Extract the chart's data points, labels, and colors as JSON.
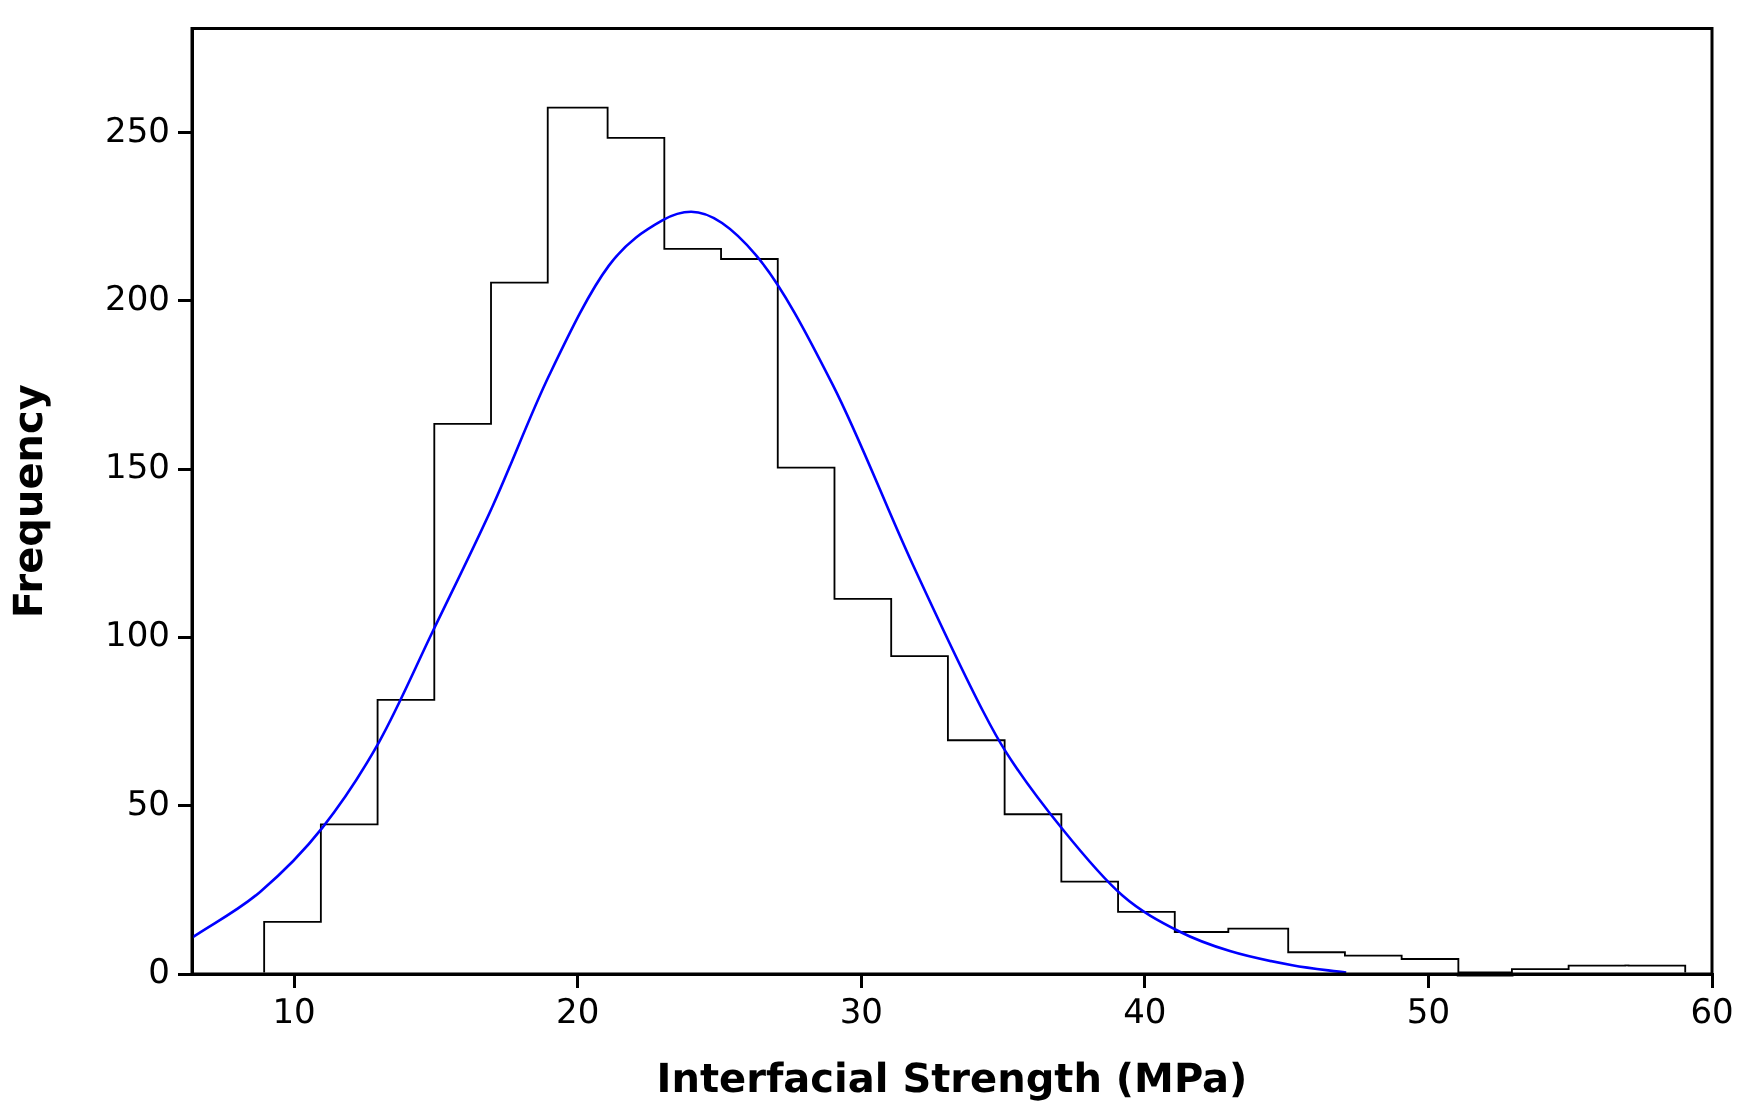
{
  "chart_data": {
    "type": "histogram",
    "xlabel": "Interfacial Strength (MPa)",
    "ylabel": "Frequency",
    "bins": [
      9,
      11,
      13,
      15,
      17,
      19,
      21,
      23,
      25,
      27,
      29,
      31,
      33,
      35,
      37,
      39,
      41,
      43,
      45,
      47,
      49,
      51,
      53,
      55,
      57,
      59
    ],
    "values": [
      15,
      44,
      81,
      163,
      205,
      257,
      248,
      215,
      212,
      150,
      111,
      94,
      69,
      47,
      27,
      18,
      12,
      13,
      6,
      5,
      4,
      0,
      1,
      2,
      2
    ],
    "color": "#ffffff",
    "series": [
      {
        "type": "line",
        "color": "#0000ff",
        "x": [
          6.4,
          8.8,
          11,
          13,
          14.9,
          17,
          19,
          21.1,
          23,
          24,
          26.3,
          29,
          31.8,
          34.3,
          35.1,
          37.1,
          39.2,
          41.2,
          43,
          45.2,
          47.1
        ],
        "values": [
          10.8,
          24.4,
          43.5,
          69,
          102,
          139,
          178,
          210.5,
          224,
          226.5,
          213.5,
          175,
          122,
          78,
          66,
          43,
          23.4,
          12.7,
          6.8,
          2.6,
          0.4
        ]
      }
    ],
    "xlim": [
      6.4,
      60
    ],
    "xticks": [
      10,
      20,
      30,
      40,
      50,
      60
    ],
    "ylim": [
      0,
      281
    ],
    "yticks": [
      0,
      50,
      100,
      150,
      200,
      250
    ],
    "grid": false,
    "legend": false,
    "marker": "none",
    "line_style": "solid"
  }
}
